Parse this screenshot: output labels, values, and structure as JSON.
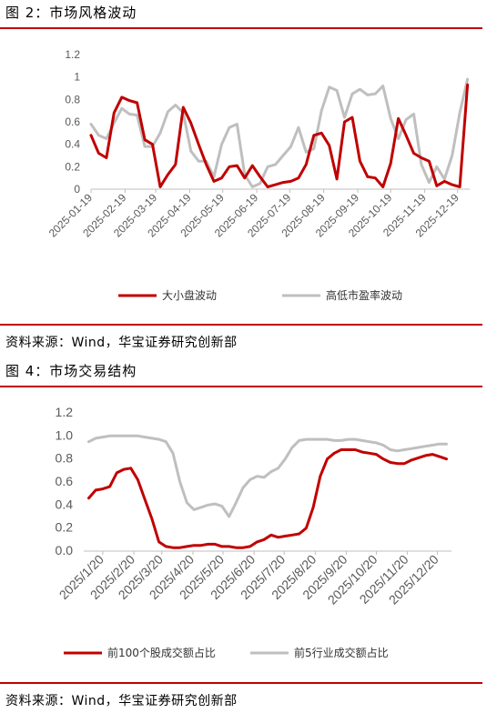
{
  "figure2": {
    "caption": "图 2：市场风格波动",
    "source": "资料来源：Wind，华宝证券研究创新部"
  },
  "figure4": {
    "caption": "图 4：市场交易结构",
    "source": "资料来源：Wind，华宝证券研究创新部"
  },
  "colors": {
    "red": "#c00000",
    "gray": "#bfbfbf",
    "rule": "#c00000"
  },
  "chart_data": [
    {
      "type": "line",
      "title": "",
      "xlabel": "",
      "ylabel": "",
      "ylim": [
        0,
        1.2
      ],
      "yticks": [
        "0",
        "0.2",
        "0.4",
        "0.6",
        "0.8",
        "1",
        "1.2"
      ],
      "xtick_labels": [
        "2025-01-19",
        "2025-02-19",
        "2025-03-19",
        "2025-04-19",
        "2025-05-19",
        "2025-06-19",
        "2025-07-19",
        "2025-08-19",
        "2025-09-19",
        "2025-10-19",
        "2025-11-19",
        "2025-12-19"
      ],
      "legend_position": "bottom",
      "grid": false,
      "x": [
        "2025-01-19",
        "2025-01-26",
        "2025-02-02",
        "2025-02-09",
        "2025-02-16",
        "2025-02-23",
        "2025-03-02",
        "2025-03-09",
        "2025-03-16",
        "2025-03-23",
        "2025-03-30",
        "2025-04-06",
        "2025-04-13",
        "2025-04-20",
        "2025-04-27",
        "2025-05-04",
        "2025-05-11",
        "2025-05-18",
        "2025-05-25",
        "2025-06-01",
        "2025-06-08",
        "2025-06-15",
        "2025-06-22",
        "2025-06-29",
        "2025-07-06",
        "2025-07-13",
        "2025-07-20",
        "2025-07-27",
        "2025-08-03",
        "2025-08-10",
        "2025-08-17",
        "2025-08-24",
        "2025-08-31",
        "2025-09-07",
        "2025-09-14",
        "2025-09-21",
        "2025-09-28",
        "2025-10-05",
        "2025-10-12",
        "2025-10-19",
        "2025-10-26",
        "2025-11-02",
        "2025-11-09",
        "2025-11-16",
        "2025-11-23",
        "2025-11-30",
        "2025-12-07",
        "2025-12-14",
        "2025-12-21",
        "2025-12-28"
      ],
      "series": [
        {
          "name": "大小盘波动",
          "color": "#c00000",
          "values": [
            0.48,
            0.32,
            0.28,
            0.68,
            0.82,
            0.79,
            0.77,
            0.44,
            0.4,
            0.02,
            0.13,
            0.22,
            0.73,
            0.59,
            0.4,
            0.22,
            0.07,
            0.1,
            0.2,
            0.21,
            0.1,
            0.21,
            0.11,
            0.02,
            0.04,
            0.06,
            0.07,
            0.1,
            0.22,
            0.48,
            0.5,
            0.39,
            0.09,
            0.6,
            0.64,
            0.25,
            0.11,
            0.1,
            0.02,
            0.23,
            0.63,
            0.48,
            0.32,
            0.28,
            0.25,
            0.03,
            0.07,
            0.04,
            0.02,
            0.93
          ]
        },
        {
          "name": "高低市盈率波动",
          "color": "#bfbfbf",
          "values": [
            0.58,
            0.48,
            0.45,
            0.59,
            0.72,
            0.67,
            0.66,
            0.38,
            0.38,
            0.5,
            0.69,
            0.75,
            0.68,
            0.34,
            0.25,
            0.25,
            0.11,
            0.4,
            0.55,
            0.58,
            0.13,
            0.02,
            0.05,
            0.2,
            0.22,
            0.3,
            0.38,
            0.55,
            0.33,
            0.36,
            0.7,
            0.91,
            0.88,
            0.64,
            0.85,
            0.89,
            0.84,
            0.85,
            0.92,
            0.63,
            0.45,
            0.62,
            0.67,
            0.22,
            0.06,
            0.2,
            0.09,
            0.3,
            0.68,
            0.98
          ]
        }
      ]
    },
    {
      "type": "line",
      "title": "",
      "xlabel": "",
      "ylabel": "",
      "ylim": [
        0,
        1.2
      ],
      "yticks": [
        "0.0",
        "0.2",
        "0.4",
        "0.6",
        "0.8",
        "1.0",
        "1.2"
      ],
      "xtick_labels": [
        "2025/1/20",
        "2025/2/20",
        "2025/3/20",
        "2025/4/20",
        "2025/5/20",
        "2025/6/20",
        "2025/7/20",
        "2025/8/20",
        "2025/9/20",
        "2025/10/20",
        "2025/11/20",
        "2025/12/20"
      ],
      "legend_position": "bottom",
      "grid": false,
      "x": [
        "2025-01-06",
        "2025-01-13",
        "2025-01-20",
        "2025-01-27",
        "2025-02-03",
        "2025-02-10",
        "2025-02-17",
        "2025-02-24",
        "2025-03-03",
        "2025-03-10",
        "2025-03-17",
        "2025-03-24",
        "2025-03-31",
        "2025-04-07",
        "2025-04-14",
        "2025-04-21",
        "2025-04-28",
        "2025-05-05",
        "2025-05-12",
        "2025-05-19",
        "2025-05-26",
        "2025-06-02",
        "2025-06-09",
        "2025-06-16",
        "2025-06-23",
        "2025-06-30",
        "2025-07-07",
        "2025-07-14",
        "2025-07-21",
        "2025-07-28",
        "2025-08-04",
        "2025-08-11",
        "2025-08-18",
        "2025-08-25",
        "2025-09-01",
        "2025-09-08",
        "2025-09-15",
        "2025-09-22",
        "2025-09-29",
        "2025-10-06",
        "2025-10-13",
        "2025-10-20",
        "2025-10-27",
        "2025-11-03",
        "2025-11-10",
        "2025-11-17",
        "2025-11-24",
        "2025-12-01",
        "2025-12-08",
        "2025-12-15",
        "2025-12-22",
        "2025-12-29"
      ],
      "series": [
        {
          "name": "前100个股成交额占比",
          "color": "#c00000",
          "values": [
            0.46,
            0.53,
            0.54,
            0.56,
            0.68,
            0.71,
            0.72,
            0.62,
            0.45,
            0.28,
            0.08,
            0.04,
            0.03,
            0.03,
            0.04,
            0.05,
            0.05,
            0.06,
            0.06,
            0.04,
            0.04,
            0.03,
            0.03,
            0.04,
            0.08,
            0.1,
            0.14,
            0.12,
            0.13,
            0.14,
            0.15,
            0.2,
            0.38,
            0.65,
            0.8,
            0.85,
            0.88,
            0.88,
            0.88,
            0.86,
            0.85,
            0.84,
            0.8,
            0.77,
            0.76,
            0.76,
            0.79,
            0.81,
            0.83,
            0.84,
            0.82,
            0.8
          ]
        },
        {
          "name": "前5行业成交额占比",
          "color": "#bfbfbf",
          "values": [
            0.95,
            0.98,
            0.99,
            1.0,
            1.0,
            1.0,
            1.0,
            1.0,
            0.99,
            0.98,
            0.97,
            0.95,
            0.85,
            0.6,
            0.42,
            0.36,
            0.38,
            0.4,
            0.41,
            0.39,
            0.3,
            0.42,
            0.55,
            0.62,
            0.65,
            0.64,
            0.69,
            0.72,
            0.8,
            0.9,
            0.96,
            0.97,
            0.97,
            0.97,
            0.97,
            0.96,
            0.96,
            0.97,
            0.97,
            0.96,
            0.95,
            0.94,
            0.92,
            0.88,
            0.87,
            0.88,
            0.89,
            0.9,
            0.91,
            0.92,
            0.93,
            0.93
          ]
        }
      ]
    }
  ]
}
